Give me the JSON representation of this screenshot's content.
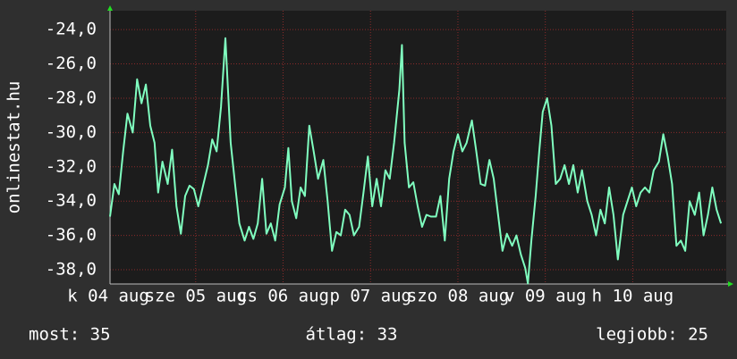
{
  "chart_data": {
    "type": "line",
    "ylabel": "onlinestat.hu",
    "color": "#80ffc0",
    "grid": true,
    "xlim": [
      4.02,
      11.07
    ],
    "ylim": [
      -38.83,
      -22.9
    ],
    "xticks": [
      {
        "value": 4,
        "label": "k 04 aug"
      },
      {
        "value": 5,
        "label": "sze 05 aug"
      },
      {
        "value": 6,
        "label": "cs 06 aug"
      },
      {
        "value": 7,
        "label": "p 07 aug"
      },
      {
        "value": 8,
        "label": "szo 08 aug"
      },
      {
        "value": 9,
        "label": "v 09 aug"
      },
      {
        "value": 10,
        "label": "h 10 aug"
      }
    ],
    "yticks": [
      {
        "value": -24,
        "label": "-24,0"
      },
      {
        "value": -26,
        "label": "-26,0"
      },
      {
        "value": -28,
        "label": "-28,0"
      },
      {
        "value": -30,
        "label": "-30,0"
      },
      {
        "value": -32,
        "label": "-32,0"
      },
      {
        "value": -34,
        "label": "-34,0"
      },
      {
        "value": -36,
        "label": "-36,0"
      },
      {
        "value": -38,
        "label": "-38,0"
      }
    ],
    "x": [
      4.02,
      4.07,
      4.12,
      4.17,
      4.22,
      4.28,
      4.33,
      4.38,
      4.43,
      4.48,
      4.53,
      4.57,
      4.62,
      4.68,
      4.73,
      4.78,
      4.83,
      4.88,
      4.93,
      4.98,
      5.03,
      5.08,
      5.14,
      5.19,
      5.24,
      5.29,
      5.34,
      5.37,
      5.4,
      5.45,
      5.5,
      5.56,
      5.61,
      5.66,
      5.71,
      5.76,
      5.81,
      5.86,
      5.91,
      5.96,
      6.02,
      6.06,
      6.1,
      6.15,
      6.2,
      6.25,
      6.3,
      6.35,
      6.4,
      6.46,
      6.51,
      6.56,
      6.61,
      6.66,
      6.71,
      6.76,
      6.81,
      6.87,
      6.92,
      6.97,
      7.02,
      7.07,
      7.12,
      7.17,
      7.22,
      7.27,
      7.33,
      7.36,
      7.39,
      7.44,
      7.49,
      7.54,
      7.59,
      7.64,
      7.69,
      7.75,
      7.8,
      7.85,
      7.9,
      7.95,
      8.0,
      8.05,
      8.1,
      8.16,
      8.21,
      8.26,
      8.31,
      8.36,
      8.41,
      8.46,
      8.51,
      8.56,
      8.62,
      8.67,
      8.72,
      8.77,
      8.8,
      8.84,
      8.89,
      8.93,
      8.97,
      9.02,
      9.07,
      9.12,
      9.17,
      9.22,
      9.27,
      9.32,
      9.37,
      9.42,
      9.48,
      9.53,
      9.58,
      9.63,
      9.68,
      9.73,
      9.78,
      9.83,
      9.89,
      9.94,
      9.99,
      10.04,
      10.09,
      10.14,
      10.19,
      10.24,
      10.3,
      10.35,
      10.4,
      10.45,
      10.5,
      10.55,
      10.6,
      10.65,
      10.71,
      10.76,
      10.81,
      10.86,
      10.91,
      10.96,
      11.01
    ],
    "values": [
      -34.9,
      -33.0,
      -33.6,
      -31.1,
      -28.9,
      -30.0,
      -26.9,
      -28.3,
      -27.2,
      -29.6,
      -30.6,
      -33.5,
      -31.7,
      -33.0,
      -31.0,
      -34.3,
      -35.9,
      -33.7,
      -33.1,
      -33.3,
      -34.3,
      -33.2,
      -31.9,
      -30.4,
      -31.1,
      -28.5,
      -24.5,
      -27.5,
      -30.6,
      -33.0,
      -35.3,
      -36.3,
      -35.5,
      -36.2,
      -35.3,
      -32.7,
      -35.9,
      -35.3,
      -36.3,
      -34.2,
      -33.2,
      -30.9,
      -34.0,
      -35.0,
      -33.2,
      -33.7,
      -29.6,
      -31.1,
      -32.7,
      -31.6,
      -34.0,
      -36.9,
      -35.8,
      -36.0,
      -34.5,
      -34.8,
      -36.0,
      -35.5,
      -33.5,
      -31.4,
      -34.3,
      -32.7,
      -34.3,
      -32.2,
      -32.7,
      -30.6,
      -27.5,
      -24.9,
      -30.6,
      -33.2,
      -32.9,
      -34.3,
      -35.5,
      -34.8,
      -34.9,
      -34.9,
      -33.7,
      -36.3,
      -32.7,
      -31.1,
      -30.1,
      -31.1,
      -30.6,
      -29.3,
      -31.1,
      -33.0,
      -33.1,
      -31.6,
      -32.7,
      -34.8,
      -36.9,
      -35.9,
      -36.6,
      -36.0,
      -37.1,
      -37.9,
      -38.8,
      -36.3,
      -33.7,
      -31.1,
      -28.8,
      -28.0,
      -29.6,
      -33.0,
      -32.7,
      -31.9,
      -33.0,
      -31.9,
      -33.5,
      -32.2,
      -34.0,
      -34.8,
      -36.0,
      -34.5,
      -35.3,
      -33.2,
      -34.8,
      -37.4,
      -34.8,
      -34.0,
      -33.2,
      -34.3,
      -33.5,
      -33.2,
      -33.5,
      -32.2,
      -31.7,
      -30.1,
      -31.4,
      -33.0,
      -36.6,
      -36.3,
      -36.9,
      -34.0,
      -34.8,
      -33.5,
      -36.0,
      -34.8,
      -33.2,
      -34.5,
      -35.3
    ],
    "footer": [
      "most: 35",
      "átlag: 33",
      "legjobb: 25"
    ]
  }
}
